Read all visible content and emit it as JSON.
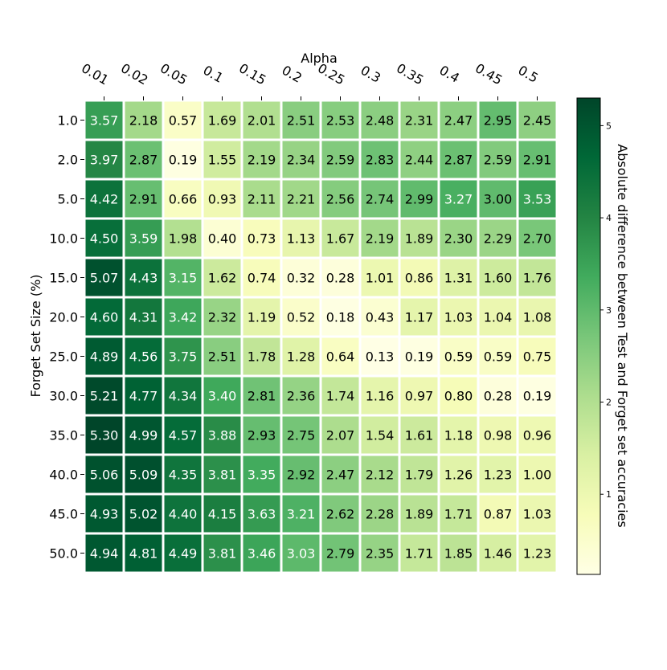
{
  "chart_data": {
    "type": "heatmap",
    "title": "",
    "xlabel": "Alpha",
    "ylabel": "Forget Set Size (%)",
    "x": [
      "0.01",
      "0.02",
      "0.05",
      "0.1",
      "0.15",
      "0.2",
      "0.25",
      "0.3",
      "0.35",
      "0.4",
      "0.45",
      "0.5"
    ],
    "y": [
      "1.0",
      "2.0",
      "5.0",
      "10.0",
      "15.0",
      "20.0",
      "25.0",
      "30.0",
      "35.0",
      "40.0",
      "45.0",
      "50.0"
    ],
    "values": [
      [
        3.57,
        2.18,
        0.57,
        1.69,
        2.01,
        2.51,
        2.53,
        2.48,
        2.31,
        2.47,
        2.95,
        2.45
      ],
      [
        3.97,
        2.87,
        0.19,
        1.55,
        2.19,
        2.34,
        2.59,
        2.83,
        2.44,
        2.87,
        2.59,
        2.91
      ],
      [
        4.42,
        2.91,
        0.66,
        0.93,
        2.11,
        2.21,
        2.56,
        2.74,
        2.99,
        3.27,
        3.0,
        3.53
      ],
      [
        4.5,
        3.59,
        1.98,
        0.4,
        0.73,
        1.13,
        1.67,
        2.19,
        1.89,
        2.3,
        2.29,
        2.7
      ],
      [
        5.07,
        4.43,
        3.15,
        1.62,
        0.74,
        0.32,
        0.28,
        1.01,
        0.86,
        1.31,
        1.6,
        1.76
      ],
      [
        4.6,
        4.31,
        3.42,
        2.32,
        1.19,
        0.52,
        0.18,
        0.43,
        1.17,
        1.03,
        1.04,
        1.08
      ],
      [
        4.89,
        4.56,
        3.75,
        2.51,
        1.78,
        1.28,
        0.64,
        0.13,
        0.19,
        0.59,
        0.59,
        0.75
      ],
      [
        5.21,
        4.77,
        4.34,
        3.4,
        2.81,
        2.36,
        1.74,
        1.16,
        0.97,
        0.8,
        0.28,
        0.19
      ],
      [
        5.3,
        4.99,
        4.57,
        3.88,
        2.93,
        2.75,
        2.07,
        1.54,
        1.61,
        1.18,
        0.98,
        0.96
      ],
      [
        5.06,
        5.09,
        4.35,
        3.81,
        3.35,
        2.92,
        2.47,
        2.12,
        1.79,
        1.26,
        1.23,
        1.0
      ],
      [
        4.93,
        5.02,
        4.4,
        4.15,
        3.63,
        3.21,
        2.62,
        2.28,
        1.89,
        1.71,
        0.87,
        1.03
      ],
      [
        4.94,
        4.81,
        4.49,
        3.81,
        3.46,
        3.03,
        2.79,
        2.35,
        1.71,
        1.85,
        1.46,
        1.23
      ]
    ],
    "vmin": 0.13,
    "vmax": 5.3,
    "colormap": "YlGn",
    "colorbar": {
      "label": "Absolute difference between Test and Forget set accuracies",
      "ticks": [
        1,
        2,
        3,
        4,
        5
      ]
    }
  }
}
